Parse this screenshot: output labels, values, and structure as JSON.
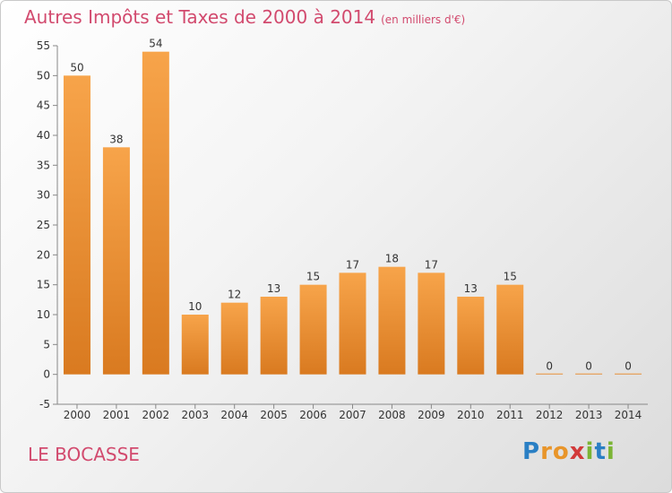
{
  "header": {
    "title": "Autres Impôts et Taxes de 2000 à 2014",
    "unit": "(en milliers d'€)"
  },
  "footer": {
    "commune": "LE BOCASSE",
    "logo_letters": [
      "P",
      "r",
      "o",
      "x",
      "i",
      "t",
      "i"
    ],
    "logo_colors": [
      "#2a7fc4",
      "#e8952a",
      "#e8952a",
      "#d23a3a",
      "#7bb434",
      "#2a7fc4",
      "#7bb434"
    ]
  },
  "colors": {
    "bar_light": "#f7a44a",
    "bar_dark": "#d97a20",
    "axis": "#888888",
    "title": "#d24a6e"
  },
  "chart_data": {
    "type": "bar",
    "title": "Autres Impôts et Taxes de 2000 à 2014",
    "categories": [
      "2000",
      "2001",
      "2002",
      "2003",
      "2004",
      "2005",
      "2006",
      "2007",
      "2008",
      "2009",
      "2010",
      "2011",
      "2012",
      "2013",
      "2014"
    ],
    "values": [
      50,
      38,
      54,
      10,
      12,
      13,
      15,
      17,
      18,
      17,
      13,
      15,
      0,
      0,
      0
    ],
    "data_labels": [
      "50",
      "38",
      "54",
      "10",
      "12",
      "13",
      "15",
      "17",
      "18",
      "17",
      "13",
      "15",
      "0",
      "0",
      "0"
    ],
    "ylim": [
      -5,
      55
    ],
    "yticks": [
      -5,
      0,
      5,
      10,
      15,
      20,
      25,
      30,
      35,
      40,
      45,
      50,
      55
    ],
    "ytick_labels": [
      "-5",
      "0",
      "5",
      "10",
      "15",
      "20",
      "25",
      "30",
      "35",
      "40",
      "45",
      "50",
      "55"
    ],
    "xlabel": "",
    "ylabel": "",
    "grid": false
  }
}
